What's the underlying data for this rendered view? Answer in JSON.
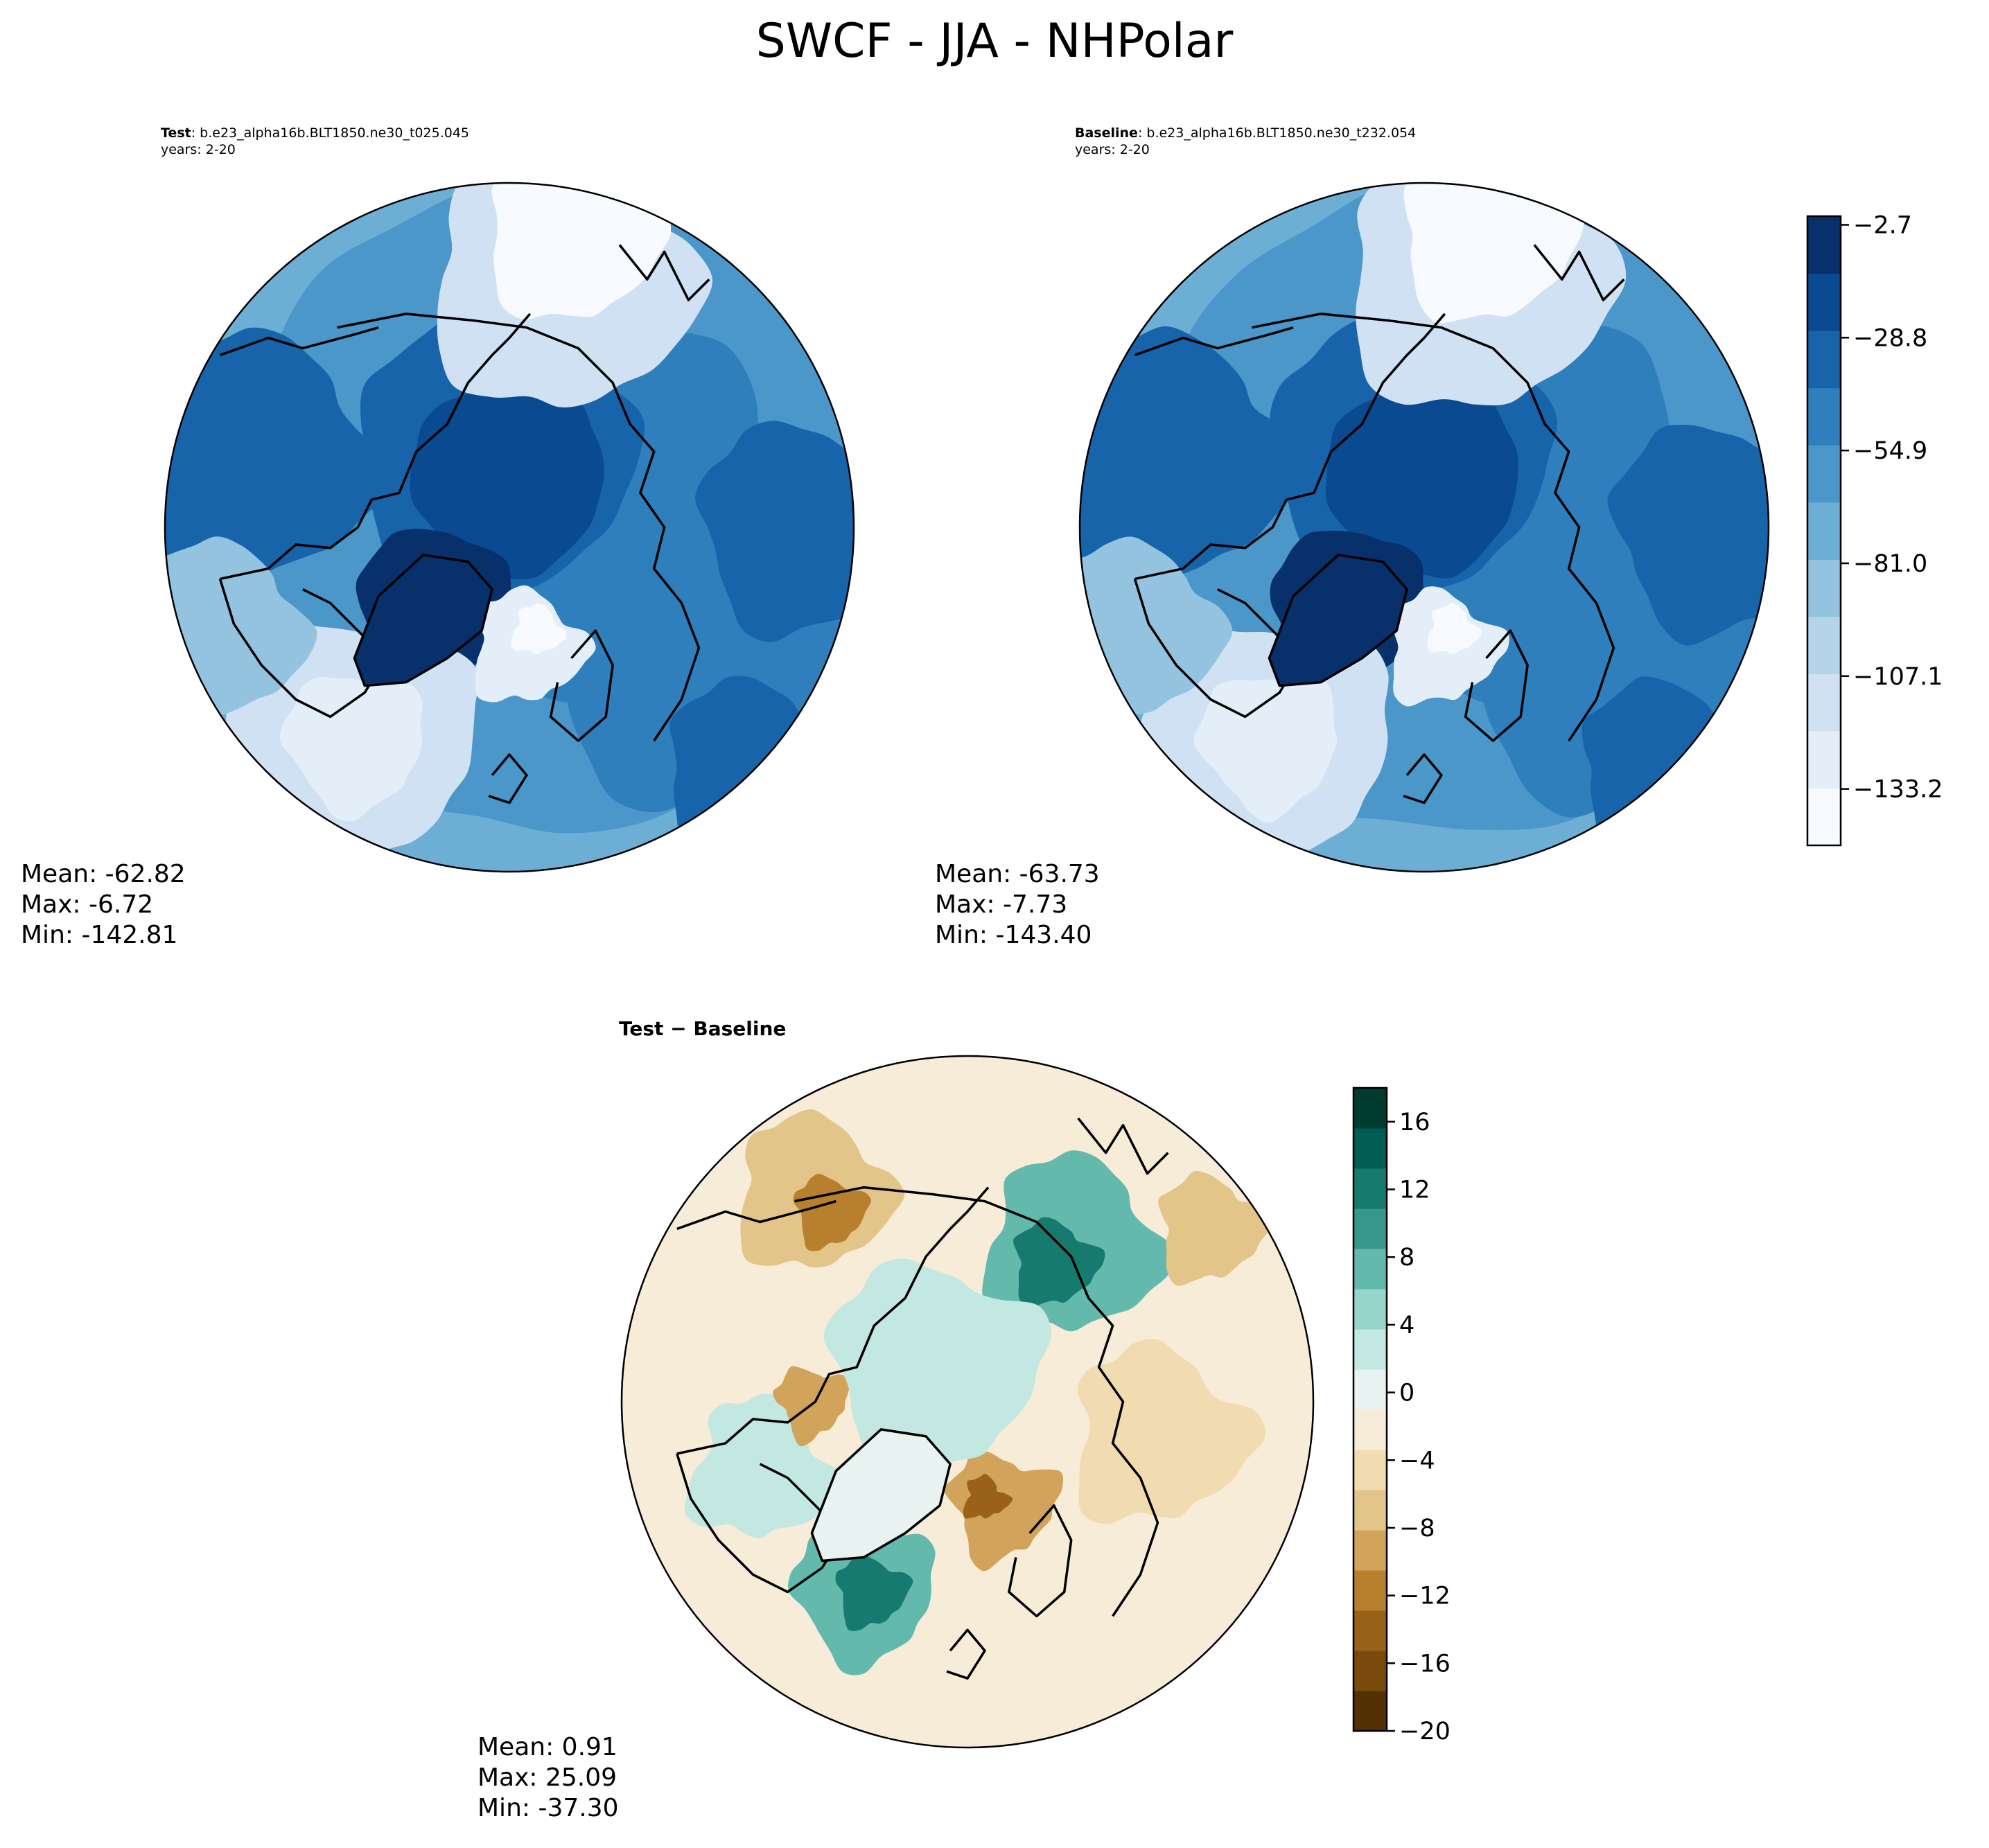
{
  "title": "SWCF - JJA - NHPolar",
  "panels": {
    "test": {
      "label_bold": "Test",
      "label_rest": ": b.e23_alpha16b.BLT1850.ne30_t025.045",
      "years": "years: 2-20",
      "stats": {
        "mean": "Mean: -62.82",
        "max": "Max: -6.72",
        "min": "Min: -142.81"
      }
    },
    "baseline": {
      "label_bold": "Baseline",
      "label_rest": ": b.e23_alpha16b.BLT1850.ne30_t232.054",
      "years": "years: 2-20",
      "stats": {
        "mean": "Mean: -63.73",
        "max": "Max: -7.73",
        "min": "Min: -143.40"
      }
    },
    "diff": {
      "title": "Test − Baseline",
      "stats": {
        "mean": "Mean:  0.91",
        "max": "Max: 25.09",
        "min": "Min: -37.30"
      }
    }
  },
  "colors": {
    "blues": [
      "#f7fbff",
      "#e3eef9",
      "#cfe1f2",
      "#b5d4e9",
      "#93c3df",
      "#6daed5",
      "#4b97c9",
      "#2f7fbc",
      "#1864aa",
      "#0a4a90",
      "#08306b"
    ],
    "brbg": [
      "#543005",
      "#7a4a0c",
      "#9a6118",
      "#b87f2f",
      "#d2a35a",
      "#e3c58a",
      "#f0dcb0",
      "#f6ecd8",
      "#e8f3f1",
      "#c3e8e2",
      "#96d5ca",
      "#64b9ad",
      "#38988d",
      "#177a6f",
      "#015e54",
      "#003c30"
    ]
  },
  "chart_data": [
    {
      "type": "heatmap",
      "name_hint": "test",
      "colorbar": null
    },
    {
      "type": "heatmap",
      "name_hint": "baseline",
      "colorbar": {
        "ticks": [
          "−2.7",
          "−28.8",
          "−54.9",
          "−81.0",
          "−107.1",
          "−133.2"
        ],
        "tick_values": [
          -2.7,
          -28.8,
          -54.9,
          -81.0,
          -107.1,
          -133.2
        ],
        "range": [
          -146.25,
          -0.7
        ],
        "levels": 11
      }
    },
    {
      "type": "heatmap",
      "name_hint": "diff",
      "colorbar": {
        "ticks": [
          "16",
          "12",
          "8",
          "4",
          "0",
          "−4",
          "−8",
          "−12",
          "−16",
          "−20"
        ],
        "tick_values": [
          16,
          12,
          8,
          4,
          0,
          -4,
          -8,
          -12,
          -16,
          -20
        ],
        "range": [
          -20,
          18
        ],
        "levels": 16
      }
    }
  ]
}
